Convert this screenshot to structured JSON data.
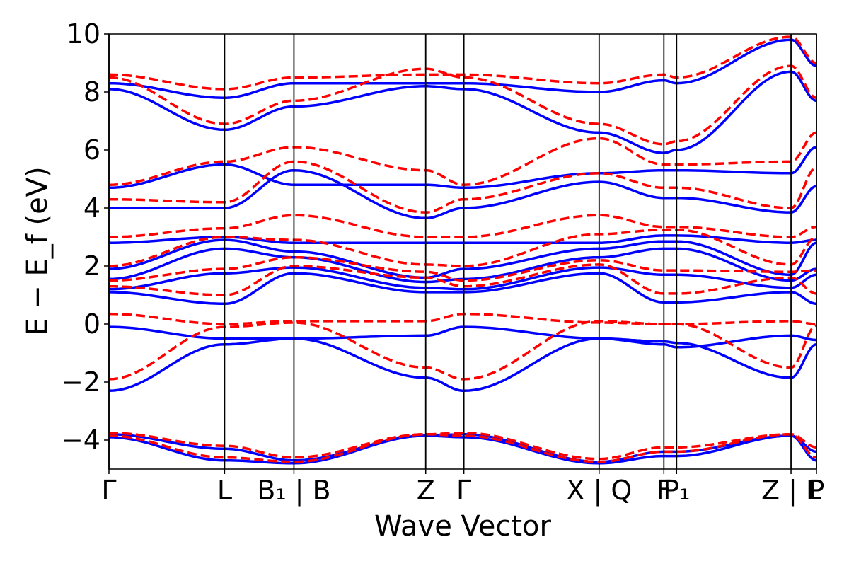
{
  "chart_data": {
    "type": "line",
    "title": "",
    "xlabel": "Wave Vector",
    "ylabel": "E − E_f (eV)",
    "ylim": [
      -5,
      10
    ],
    "yticks": [
      10,
      8,
      6,
      4,
      2,
      0,
      -2,
      -4
    ],
    "ytick_labels": [
      "10",
      "8",
      "6",
      "4",
      "2",
      "0",
      "−2",
      "−4"
    ],
    "xlim": [
      0,
      6.12
    ],
    "kpoints": [
      {
        "label": "Γ",
        "x": 0.0
      },
      {
        "label": "L",
        "x": 1.0
      },
      {
        "label": "B₁ | B",
        "x": 1.6
      },
      {
        "label": "Z",
        "x": 2.74
      },
      {
        "label": "Γ",
        "x": 3.07
      },
      {
        "label": "X | Q",
        "x": 4.24
      },
      {
        "label": "F",
        "x": 4.8
      },
      {
        "label": "P₁",
        "x": 4.91
      },
      {
        "label": "Z | L",
        "x": 5.9
      },
      {
        "label": "P",
        "x": 6.12
      }
    ],
    "grid": false,
    "legend": "none",
    "series": [
      {
        "style": "solid",
        "color": "#0000ff",
        "x": [
          0,
          1,
          1.6,
          2.74,
          3.07,
          4.24,
          4.8,
          4.91,
          5.9,
          6.12
        ],
        "y": [
          -2.3,
          -0.7,
          -0.5,
          -1.85,
          -2.3,
          -0.5,
          -0.6,
          -0.65,
          -1.85,
          -0.7
        ]
      },
      {
        "style": "solid",
        "color": "#0000ff",
        "x": [
          0,
          1,
          1.6,
          2.74,
          3.07,
          4.24,
          4.8,
          4.91,
          5.9,
          6.12
        ],
        "y": [
          -0.1,
          -0.5,
          -0.5,
          -0.4,
          -0.1,
          -0.5,
          -0.7,
          -0.8,
          -0.4,
          -0.55
        ]
      },
      {
        "style": "solid",
        "color": "#0000ff",
        "x": [
          0,
          1,
          1.6,
          2.74,
          3.07,
          4.24,
          4.8,
          4.91,
          5.9,
          6.12
        ],
        "y": [
          1.1,
          0.7,
          1.75,
          1.1,
          1.1,
          1.75,
          0.75,
          0.75,
          1.1,
          0.7
        ]
      },
      {
        "style": "solid",
        "color": "#0000ff",
        "x": [
          0,
          1,
          1.6,
          2.74,
          3.07,
          4.24,
          4.8,
          4.91,
          5.9,
          6.12
        ],
        "y": [
          1.2,
          1.75,
          1.95,
          1.25,
          1.2,
          1.95,
          1.7,
          1.7,
          1.25,
          1.7
        ]
      },
      {
        "style": "solid",
        "color": "#0000ff",
        "x": [
          0,
          1,
          1.6,
          2.74,
          3.07,
          4.24,
          4.8,
          4.91,
          5.9,
          6.12
        ],
        "y": [
          1.55,
          2.6,
          2.3,
          1.45,
          1.55,
          2.3,
          2.6,
          2.6,
          1.5,
          1.9
        ]
      },
      {
        "style": "solid",
        "color": "#0000ff",
        "x": [
          0,
          1,
          1.6,
          2.74,
          3.07,
          4.24,
          4.8,
          4.91,
          5.9,
          6.12
        ],
        "y": [
          1.9,
          2.9,
          2.5,
          1.6,
          1.9,
          2.6,
          2.85,
          2.85,
          1.7,
          2.8
        ]
      },
      {
        "style": "solid",
        "color": "#0000ff",
        "x": [
          0,
          1,
          1.6,
          2.74,
          3.07,
          4.24,
          4.8,
          4.91,
          5.9,
          6.12
        ],
        "y": [
          2.8,
          3.0,
          2.8,
          2.8,
          2.8,
          2.8,
          3.05,
          3.05,
          2.8,
          2.9
        ]
      },
      {
        "style": "solid",
        "color": "#0000ff",
        "x": [
          0,
          1,
          1.6,
          2.74,
          3.07,
          4.24,
          4.8,
          4.91,
          5.9,
          6.12
        ],
        "y": [
          4.0,
          4.0,
          5.3,
          3.65,
          4.0,
          4.9,
          4.35,
          4.35,
          3.85,
          4.75
        ]
      },
      {
        "style": "solid",
        "color": "#0000ff",
        "x": [
          0,
          1,
          1.6,
          2.74,
          3.07,
          4.24,
          4.8,
          4.91,
          5.9,
          6.12
        ],
        "y": [
          4.7,
          5.5,
          4.8,
          4.8,
          4.7,
          5.2,
          5.3,
          5.3,
          5.2,
          6.1
        ]
      },
      {
        "style": "solid",
        "color": "#0000ff",
        "x": [
          0,
          1,
          1.6,
          2.74,
          3.07,
          4.24,
          4.8,
          4.91,
          5.9,
          6.12
        ],
        "y": [
          8.1,
          6.7,
          7.5,
          8.2,
          8.1,
          6.6,
          5.9,
          6.0,
          8.7,
          7.7
        ]
      },
      {
        "style": "solid",
        "color": "#0000ff",
        "x": [
          0,
          1,
          1.6,
          2.74,
          3.07,
          4.24,
          4.8,
          4.91,
          5.9,
          6.12
        ],
        "y": [
          8.3,
          7.8,
          8.3,
          8.3,
          8.3,
          8.0,
          8.4,
          8.3,
          9.8,
          8.9
        ]
      },
      {
        "style": "solid",
        "color": "#0000ff",
        "x": [
          0,
          1,
          1.6,
          2.74,
          3.07,
          4.24,
          4.8,
          4.91,
          5.9,
          6.12
        ],
        "y": [
          -3.8,
          -4.3,
          -4.7,
          -3.85,
          -3.8,
          -4.75,
          -4.4,
          -4.4,
          -3.85,
          -4.4
        ]
      },
      {
        "style": "solid",
        "color": "#0000ff",
        "x": [
          0,
          1,
          1.6,
          2.74,
          3.07,
          4.24,
          4.8,
          4.91,
          5.9,
          6.12
        ],
        "y": [
          -3.9,
          -4.7,
          -4.8,
          -3.85,
          -3.9,
          -4.8,
          -4.55,
          -4.55,
          -3.85,
          -4.7
        ]
      },
      {
        "style": "dashed",
        "color": "#ff0000",
        "x": [
          0,
          1,
          1.6,
          2.74,
          3.07,
          4.24,
          4.8,
          4.91,
          5.9,
          6.12
        ],
        "y": [
          -1.9,
          -0.1,
          0.05,
          -1.5,
          -1.9,
          0.1,
          0.0,
          0.0,
          -1.5,
          -0.05
        ]
      },
      {
        "style": "dashed",
        "color": "#ff0000",
        "x": [
          0,
          1,
          1.6,
          2.74,
          3.07,
          4.24,
          4.8,
          4.91,
          5.9,
          6.12
        ],
        "y": [
          0.35,
          0.0,
          0.1,
          0.1,
          0.35,
          0.05,
          0.0,
          0.0,
          0.1,
          0.0
        ]
      },
      {
        "style": "dashed",
        "color": "#ff0000",
        "x": [
          0,
          1,
          1.6,
          2.74,
          3.07,
          4.24,
          4.8,
          4.91,
          5.9,
          6.12
        ],
        "y": [
          1.3,
          1.0,
          2.0,
          1.6,
          1.3,
          2.05,
          1.05,
          1.05,
          1.6,
          1.05
        ]
      },
      {
        "style": "dashed",
        "color": "#ff0000",
        "x": [
          0,
          1,
          1.6,
          2.74,
          3.07,
          4.24,
          4.8,
          4.91,
          5.9,
          6.12
        ],
        "y": [
          1.5,
          1.9,
          2.3,
          1.8,
          1.5,
          2.2,
          1.85,
          1.85,
          1.8,
          1.85
        ]
      },
      {
        "style": "dashed",
        "color": "#ff0000",
        "x": [
          0,
          1,
          1.6,
          2.74,
          3.07,
          4.24,
          4.8,
          4.91,
          5.9,
          6.12
        ],
        "y": [
          2.0,
          3.0,
          2.9,
          2.05,
          2.0,
          3.1,
          3.25,
          3.25,
          2.05,
          3.0
        ]
      },
      {
        "style": "dashed",
        "color": "#ff0000",
        "x": [
          0,
          1,
          1.6,
          2.74,
          3.07,
          4.24,
          4.8,
          4.91,
          5.9,
          6.12
        ],
        "y": [
          3.0,
          3.3,
          3.75,
          3.0,
          3.0,
          3.75,
          3.35,
          3.35,
          3.0,
          3.35
        ]
      },
      {
        "style": "dashed",
        "color": "#ff0000",
        "x": [
          0,
          1,
          1.6,
          2.74,
          3.07,
          4.24,
          4.8,
          4.91,
          5.9,
          6.12
        ],
        "y": [
          4.3,
          4.2,
          5.6,
          3.85,
          4.3,
          5.2,
          4.7,
          4.7,
          4.0,
          5.4
        ]
      },
      {
        "style": "dashed",
        "color": "#ff0000",
        "x": [
          0,
          1,
          1.6,
          2.74,
          3.07,
          4.24,
          4.8,
          4.91,
          5.9,
          6.12
        ],
        "y": [
          4.8,
          5.6,
          6.1,
          5.3,
          4.8,
          6.4,
          5.5,
          5.5,
          5.6,
          6.6
        ]
      },
      {
        "style": "dashed",
        "color": "#ff0000",
        "x": [
          0,
          1,
          1.6,
          2.74,
          3.07,
          4.24,
          4.8,
          4.91,
          5.9,
          6.12
        ],
        "y": [
          8.5,
          6.9,
          7.7,
          8.8,
          8.5,
          6.9,
          6.2,
          6.3,
          8.9,
          7.8
        ]
      },
      {
        "style": "dashed",
        "color": "#ff0000",
        "x": [
          0,
          1,
          1.6,
          2.74,
          3.07,
          4.24,
          4.8,
          4.91,
          5.9,
          6.12
        ],
        "y": [
          8.6,
          8.1,
          8.5,
          8.6,
          8.6,
          8.3,
          8.6,
          8.5,
          9.9,
          9.0
        ]
      },
      {
        "style": "dashed",
        "color": "#ff0000",
        "x": [
          0,
          1,
          1.6,
          2.74,
          3.07,
          4.24,
          4.8,
          4.91,
          5.9,
          6.12
        ],
        "y": [
          -3.75,
          -4.2,
          -4.6,
          -3.8,
          -3.75,
          -4.65,
          -4.25,
          -4.25,
          -3.8,
          -4.25
        ]
      },
      {
        "style": "dashed",
        "color": "#ff0000",
        "x": [
          0,
          1,
          1.6,
          2.74,
          3.07,
          4.24,
          4.8,
          4.91,
          5.9,
          6.12
        ],
        "y": [
          -3.85,
          -4.6,
          -4.75,
          -3.8,
          -3.85,
          -4.75,
          -4.4,
          -4.4,
          -3.8,
          -4.6
        ]
      }
    ]
  }
}
